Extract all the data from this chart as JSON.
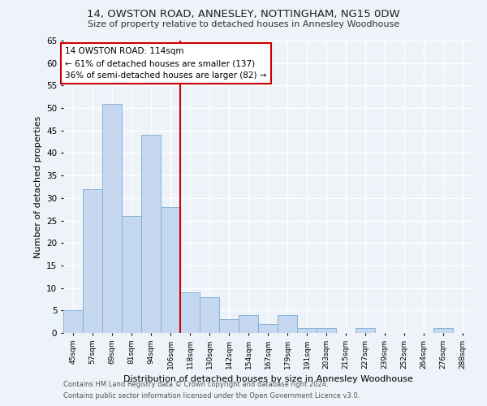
{
  "title": "14, OWSTON ROAD, ANNESLEY, NOTTINGHAM, NG15 0DW",
  "subtitle": "Size of property relative to detached houses in Annesley Woodhouse",
  "xlabel": "Distribution of detached houses by size in Annesley Woodhouse",
  "ylabel": "Number of detached properties",
  "categories": [
    "45sqm",
    "57sqm",
    "69sqm",
    "81sqm",
    "94sqm",
    "106sqm",
    "118sqm",
    "130sqm",
    "142sqm",
    "154sqm",
    "167sqm",
    "179sqm",
    "191sqm",
    "203sqm",
    "215sqm",
    "227sqm",
    "239sqm",
    "252sqm",
    "264sqm",
    "276sqm",
    "288sqm"
  ],
  "values": [
    5,
    32,
    51,
    26,
    44,
    28,
    9,
    8,
    3,
    4,
    2,
    4,
    1,
    1,
    0,
    1,
    0,
    0,
    0,
    1,
    0
  ],
  "bar_color": "#c5d8f0",
  "bar_edge_color": "#7aadd4",
  "property_line_x": 6.0,
  "annotation_text": "14 OWSTON ROAD: 114sqm\n← 61% of detached houses are smaller (137)\n36% of semi-detached houses are larger (82) →",
  "annotation_box_color": "#ffffff",
  "annotation_box_edge_color": "#cc0000",
  "vline_color": "#cc0000",
  "ylim": [
    0,
    65
  ],
  "yticks": [
    0,
    5,
    10,
    15,
    20,
    25,
    30,
    35,
    40,
    45,
    50,
    55,
    60,
    65
  ],
  "background_color": "#eef2f9",
  "grid_color": "#ffffff",
  "footer_line1": "Contains HM Land Registry data © Crown copyright and database right 2024.",
  "footer_line2": "Contains public sector information licensed under the Open Government Licence v3.0."
}
